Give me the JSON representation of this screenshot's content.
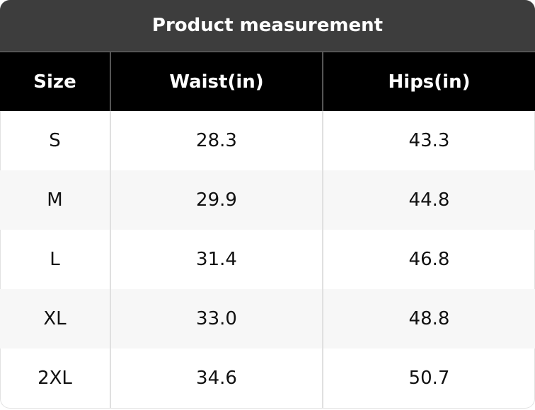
{
  "header": {
    "title": "Product measurement"
  },
  "table": {
    "columns": [
      "Size",
      "Waist(in)",
      "Hips(in)"
    ],
    "rows": [
      [
        "S",
        "28.3",
        "43.3"
      ],
      [
        "M",
        "29.9",
        "44.8"
      ],
      [
        "L",
        "31.4",
        "46.8"
      ],
      [
        "XL",
        "33.0",
        "48.8"
      ],
      [
        "2XL",
        "34.6",
        "50.7"
      ]
    ]
  }
}
